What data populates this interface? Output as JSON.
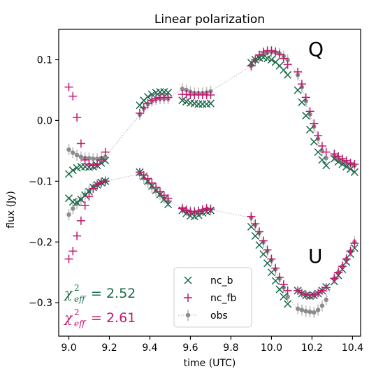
{
  "chart_data": {
    "type": "scatter",
    "title": "Linear polarization",
    "xlabel": "time (UTC)",
    "ylabel": "flux (Jy)",
    "xlim": [
      8.95,
      10.44
    ],
    "ylim": [
      -0.355,
      0.15
    ],
    "xticks": [
      "9.0",
      "9.2",
      "9.4",
      "9.6",
      "9.8",
      "10.0",
      "10.2",
      "10.4"
    ],
    "yticks": [
      "−0.3",
      "−0.2",
      "−0.1",
      "0.0",
      "0.1"
    ],
    "panel_labels": [
      "Q",
      "U"
    ],
    "legend": {
      "placement": "lower-center",
      "entries": [
        {
          "label": "nc_b",
          "marker": "x",
          "color": "#1a6b49"
        },
        {
          "label": "nc_fb",
          "marker": "+",
          "color": "#c4176e"
        },
        {
          "label": "obs",
          "marker": "errorbar",
          "color": "#8c8c8c"
        }
      ]
    },
    "annotations": [
      {
        "symbol": "χ",
        "sup": "2",
        "sub": "eff",
        "value": "= 2.52",
        "color": "#1a6b49"
      },
      {
        "symbol": "χ",
        "sup": "2",
        "sub": "eff",
        "value": "= 2.61",
        "color": "#c4176e"
      }
    ],
    "series": [
      {
        "name": "obs",
        "component": "Q",
        "color": "#8c8c8c",
        "x": [
          9.0,
          9.02,
          9.04,
          9.06,
          9.08,
          9.1,
          9.12,
          9.14,
          9.16,
          9.18,
          9.35,
          9.37,
          9.39,
          9.41,
          9.43,
          9.45,
          9.47,
          9.49,
          9.56,
          9.58,
          9.6,
          9.62,
          9.64,
          9.66,
          9.68,
          9.7,
          9.9,
          9.92,
          9.94,
          9.96,
          9.98,
          10.0,
          10.02,
          10.04,
          10.06,
          10.08,
          10.13,
          10.15,
          10.17,
          10.19,
          10.21,
          10.23,
          10.25,
          10.27,
          10.31,
          10.33,
          10.35,
          10.37,
          10.39,
          10.41
        ],
        "y": [
          -0.048,
          -0.053,
          -0.057,
          -0.06,
          -0.062,
          -0.062,
          -0.063,
          -0.063,
          -0.062,
          -0.06,
          0.01,
          0.02,
          0.027,
          0.032,
          0.035,
          0.036,
          0.036,
          0.036,
          0.052,
          0.05,
          0.047,
          0.045,
          0.045,
          0.045,
          0.046,
          0.048,
          0.09,
          0.098,
          0.105,
          0.11,
          0.112,
          0.113,
          0.112,
          0.11,
          0.106,
          0.1,
          0.075,
          0.055,
          0.032,
          0.01,
          -0.01,
          -0.03,
          -0.05,
          -0.062,
          -0.058,
          -0.062,
          -0.066,
          -0.07,
          -0.072,
          -0.074
        ]
      },
      {
        "name": "obs",
        "component": "U",
        "color": "#8c8c8c",
        "x": [
          9.0,
          9.02,
          9.04,
          9.06,
          9.08,
          9.1,
          9.12,
          9.14,
          9.16,
          9.18,
          9.35,
          9.37,
          9.39,
          9.41,
          9.43,
          9.45,
          9.47,
          9.49,
          9.56,
          9.58,
          9.6,
          9.62,
          9.64,
          9.66,
          9.68,
          9.7,
          9.9,
          9.92,
          9.94,
          9.96,
          9.98,
          10.0,
          10.02,
          10.04,
          10.06,
          10.08,
          10.13,
          10.15,
          10.17,
          10.19,
          10.21,
          10.23,
          10.25,
          10.27,
          10.31,
          10.33,
          10.35,
          10.37,
          10.39,
          10.41
        ],
        "y": [
          -0.155,
          -0.145,
          -0.137,
          -0.13,
          -0.122,
          -0.116,
          -0.11,
          -0.106,
          -0.102,
          -0.1,
          -0.088,
          -0.095,
          -0.102,
          -0.11,
          -0.116,
          -0.122,
          -0.128,
          -0.133,
          -0.145,
          -0.148,
          -0.15,
          -0.151,
          -0.15,
          -0.148,
          -0.146,
          -0.147,
          -0.16,
          -0.172,
          -0.185,
          -0.2,
          -0.215,
          -0.23,
          -0.245,
          -0.26,
          -0.275,
          -0.29,
          -0.31,
          -0.312,
          -0.314,
          -0.315,
          -0.316,
          -0.312,
          -0.305,
          -0.295,
          -0.26,
          -0.25,
          -0.24,
          -0.228,
          -0.215,
          -0.2
        ]
      },
      {
        "name": "nc_b",
        "component": "Q",
        "color": "#1a6b49",
        "x": [
          9.0,
          9.02,
          9.04,
          9.06,
          9.08,
          9.1,
          9.12,
          9.14,
          9.16,
          9.18,
          9.35,
          9.37,
          9.39,
          9.41,
          9.43,
          9.45,
          9.47,
          9.49,
          9.56,
          9.58,
          9.6,
          9.62,
          9.64,
          9.66,
          9.68,
          9.7,
          9.9,
          9.92,
          9.94,
          9.96,
          9.98,
          10.0,
          10.02,
          10.04,
          10.06,
          10.08,
          10.13,
          10.15,
          10.17,
          10.19,
          10.21,
          10.23,
          10.25,
          10.27,
          10.31,
          10.33,
          10.35,
          10.37,
          10.39,
          10.41
        ],
        "y": [
          -0.088,
          -0.082,
          -0.078,
          -0.076,
          -0.076,
          -0.077,
          -0.076,
          -0.074,
          -0.07,
          -0.066,
          0.025,
          0.033,
          0.039,
          0.043,
          0.046,
          0.047,
          0.047,
          0.046,
          0.033,
          0.031,
          0.029,
          0.028,
          0.027,
          0.027,
          0.027,
          0.028,
          0.095,
          0.1,
          0.103,
          0.104,
          0.102,
          0.1,
          0.096,
          0.09,
          0.083,
          0.075,
          0.05,
          0.03,
          0.008,
          -0.015,
          -0.035,
          -0.052,
          -0.065,
          -0.074,
          -0.063,
          -0.068,
          -0.072,
          -0.076,
          -0.08,
          -0.085
        ]
      },
      {
        "name": "nc_b",
        "component": "U",
        "color": "#1a6b49",
        "x": [
          9.0,
          9.02,
          9.04,
          9.06,
          9.08,
          9.1,
          9.12,
          9.14,
          9.16,
          9.18,
          9.35,
          9.37,
          9.39,
          9.41,
          9.43,
          9.45,
          9.47,
          9.49,
          9.56,
          9.58,
          9.6,
          9.62,
          9.64,
          9.66,
          9.68,
          9.7,
          9.9,
          9.92,
          9.94,
          9.96,
          9.98,
          10.0,
          10.02,
          10.04,
          10.06,
          10.08,
          10.13,
          10.15,
          10.17,
          10.19,
          10.21,
          10.23,
          10.25,
          10.27,
          10.31,
          10.33,
          10.35,
          10.37,
          10.39,
          10.41
        ],
        "y": [
          -0.128,
          -0.134,
          -0.135,
          -0.13,
          -0.123,
          -0.117,
          -0.11,
          -0.106,
          -0.102,
          -0.1,
          -0.085,
          -0.092,
          -0.1,
          -0.108,
          -0.115,
          -0.122,
          -0.13,
          -0.138,
          -0.148,
          -0.153,
          -0.157,
          -0.158,
          -0.156,
          -0.152,
          -0.15,
          -0.148,
          -0.175,
          -0.19,
          -0.205,
          -0.22,
          -0.235,
          -0.25,
          -0.264,
          -0.278,
          -0.29,
          -0.302,
          -0.28,
          -0.285,
          -0.288,
          -0.289,
          -0.288,
          -0.285,
          -0.28,
          -0.274,
          -0.265,
          -0.255,
          -0.245,
          -0.233,
          -0.22,
          -0.21
        ]
      },
      {
        "name": "nc_fb",
        "component": "Q",
        "color": "#c4176e",
        "x": [
          9.0,
          9.02,
          9.04,
          9.06,
          9.08,
          9.1,
          9.12,
          9.14,
          9.16,
          9.18,
          9.35,
          9.37,
          9.39,
          9.41,
          9.43,
          9.45,
          9.47,
          9.49,
          9.56,
          9.58,
          9.6,
          9.62,
          9.64,
          9.66,
          9.68,
          9.7,
          9.9,
          9.92,
          9.94,
          9.96,
          9.98,
          10.0,
          10.02,
          10.04,
          10.06,
          10.08,
          10.13,
          10.15,
          10.17,
          10.19,
          10.21,
          10.23,
          10.25,
          10.27,
          10.31,
          10.33,
          10.35,
          10.37,
          10.39,
          10.41
        ],
        "y": [
          0.055,
          0.04,
          0.005,
          -0.038,
          -0.065,
          -0.072,
          -0.074,
          -0.072,
          -0.065,
          -0.052,
          0.012,
          0.021,
          0.028,
          0.033,
          0.036,
          0.038,
          0.038,
          0.038,
          0.043,
          0.043,
          0.042,
          0.042,
          0.042,
          0.042,
          0.042,
          0.042,
          0.09,
          0.1,
          0.108,
          0.113,
          0.115,
          0.115,
          0.113,
          0.109,
          0.102,
          0.092,
          0.08,
          0.06,
          0.038,
          0.015,
          -0.005,
          -0.025,
          -0.042,
          -0.052,
          -0.055,
          -0.059,
          -0.063,
          -0.066,
          -0.07,
          -0.072
        ]
      },
      {
        "name": "nc_fb",
        "component": "U",
        "color": "#c4176e",
        "x": [
          9.0,
          9.02,
          9.04,
          9.06,
          9.08,
          9.1,
          9.12,
          9.14,
          9.16,
          9.18,
          9.35,
          9.37,
          9.39,
          9.41,
          9.43,
          9.45,
          9.47,
          9.49,
          9.56,
          9.58,
          9.6,
          9.62,
          9.64,
          9.66,
          9.68,
          9.7,
          9.9,
          9.92,
          9.94,
          9.96,
          9.98,
          10.0,
          10.02,
          10.04,
          10.06,
          10.08,
          10.13,
          10.15,
          10.17,
          10.19,
          10.21,
          10.23,
          10.25,
          10.27,
          10.31,
          10.33,
          10.35,
          10.37,
          10.39,
          10.41
        ],
        "y": [
          -0.228,
          -0.215,
          -0.19,
          -0.165,
          -0.14,
          -0.125,
          -0.112,
          -0.106,
          -0.102,
          -0.1,
          -0.085,
          -0.09,
          -0.096,
          -0.103,
          -0.11,
          -0.117,
          -0.123,
          -0.128,
          -0.145,
          -0.148,
          -0.15,
          -0.15,
          -0.149,
          -0.147,
          -0.145,
          -0.146,
          -0.158,
          -0.17,
          -0.183,
          -0.198,
          -0.213,
          -0.228,
          -0.243,
          -0.258,
          -0.27,
          -0.28,
          -0.28,
          -0.284,
          -0.287,
          -0.288,
          -0.287,
          -0.284,
          -0.28,
          -0.275,
          -0.26,
          -0.25,
          -0.24,
          -0.228,
          -0.215,
          -0.202
        ]
      }
    ]
  }
}
